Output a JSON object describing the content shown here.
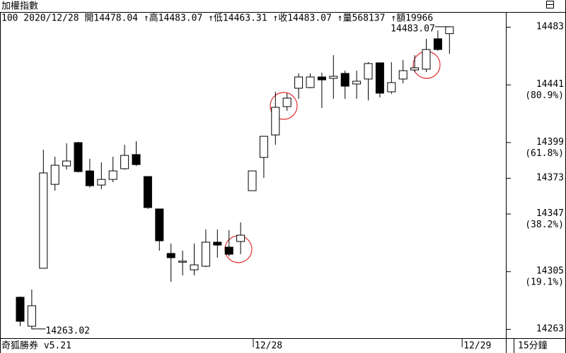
{
  "chart_data": {
    "type": "candlestick",
    "title": "加權指數",
    "subtitle": "100 2020/12/28 開14478.04 ↑高14483.07 ↑低14463.31 ↑收14483.07 ↑量568137 ↑額19966",
    "footer_left": "奇狐勝券 v5.21",
    "footer_right": "15分鐘",
    "max_label": "14483.07",
    "min_label": "14263.02",
    "categories": [
      null,
      null,
      null,
      null,
      null,
      null,
      null,
      null,
      null,
      null,
      null,
      null,
      null,
      null,
      null,
      null,
      null,
      null,
      null,
      null,
      "12/28",
      null,
      null,
      null,
      null,
      null,
      null,
      null,
      null,
      null,
      null,
      null,
      null,
      null,
      null,
      null,
      null,
      null,
      "12/29"
    ],
    "open": [
      14286.1,
      14265,
      14307.2,
      14368.3,
      14381.7,
      14398.7,
      14378.1,
      14367.8,
      14371.9,
      14379.7,
      14390,
      14374,
      14350.4,
      14318,
      14312,
      14306.1,
      14308.7,
      14326.2,
      14322.6,
      14326.7,
      14363.7,
      14387.9,
      14404.3,
      14424.9,
      14438.3,
      14438.8,
      14446.5,
      14445.5,
      14449.1,
      14441.4,
      14445,
      14456.8,
      14435.7,
      14445,
      14451.6,
      14452.2,
      14474.3,
      14478.04,
      null
    ],
    "high": [
      14286.6,
      14291.7,
      14393.5,
      14388.4,
      14398.2,
      14399.2,
      14386.9,
      14384.3,
      14388.4,
      14397.1,
      14399.7,
      14374,
      14350.6,
      14325.2,
      14320,
      14325.2,
      14335.4,
      14335.4,
      14335,
      14340.6,
      14378.1,
      14403.3,
      14435.7,
      14434.7,
      14449.1,
      14449,
      14449.6,
      14462.4,
      14451.1,
      14451.1,
      14457.3,
      14456.8,
      14457.3,
      14458.8,
      14462.4,
      14474.3,
      14480.4,
      14483.07,
      null
    ],
    "low": [
      14265,
      14263.02,
      14307,
      14363.7,
      14379.1,
      14377,
      14366,
      14364.7,
      14369.9,
      14379,
      14381.7,
      14350.4,
      14320,
      14297.4,
      14302,
      14302,
      14308,
      14314.9,
      14316,
      14317.4,
      14363.7,
      14373,
      14397.1,
      14421.8,
      14430.6,
      14438.3,
      14423.9,
      14430.6,
      14430.6,
      14430.6,
      14429.5,
      14431.6,
      14434.2,
      14441.9,
      14450.1,
      14450.1,
      14465.5,
      14463.31,
      null
    ],
    "close": [
      14268.6,
      14279.9,
      14376.6,
      14382.2,
      14385.3,
      14377.6,
      14367.3,
      14371.9,
      14378.1,
      14389.4,
      14382.7,
      14351.4,
      14327.2,
      14314.9,
      14312.4,
      14309.7,
      14326.2,
      14324.1,
      14317.4,
      14331.3,
      14378.1,
      14403.3,
      14424.4,
      14431.1,
      14446.5,
      14446.5,
      14444.4,
      14447,
      14439.8,
      14443.4,
      14456.3,
      14434.7,
      14442.4,
      14451.1,
      14453.2,
      14466.5,
      14466.5,
      14483.07,
      null
    ],
    "up_color": "#ffffff",
    "down_color": "#000000",
    "ylim": [
      14256.8,
      14493.3
    ],
    "yticks": [
      14483,
      14441,
      14399,
      14373,
      14347,
      14305,
      14263
    ],
    "ylevels": [
      {
        "value": 14441,
        "label": "(80.9%)"
      },
      {
        "value": 14399,
        "label": "(61.8%)"
      },
      {
        "value": 14347,
        "label": "(38.2%)"
      },
      {
        "value": 14305,
        "label": "(19.1%)"
      }
    ]
  }
}
